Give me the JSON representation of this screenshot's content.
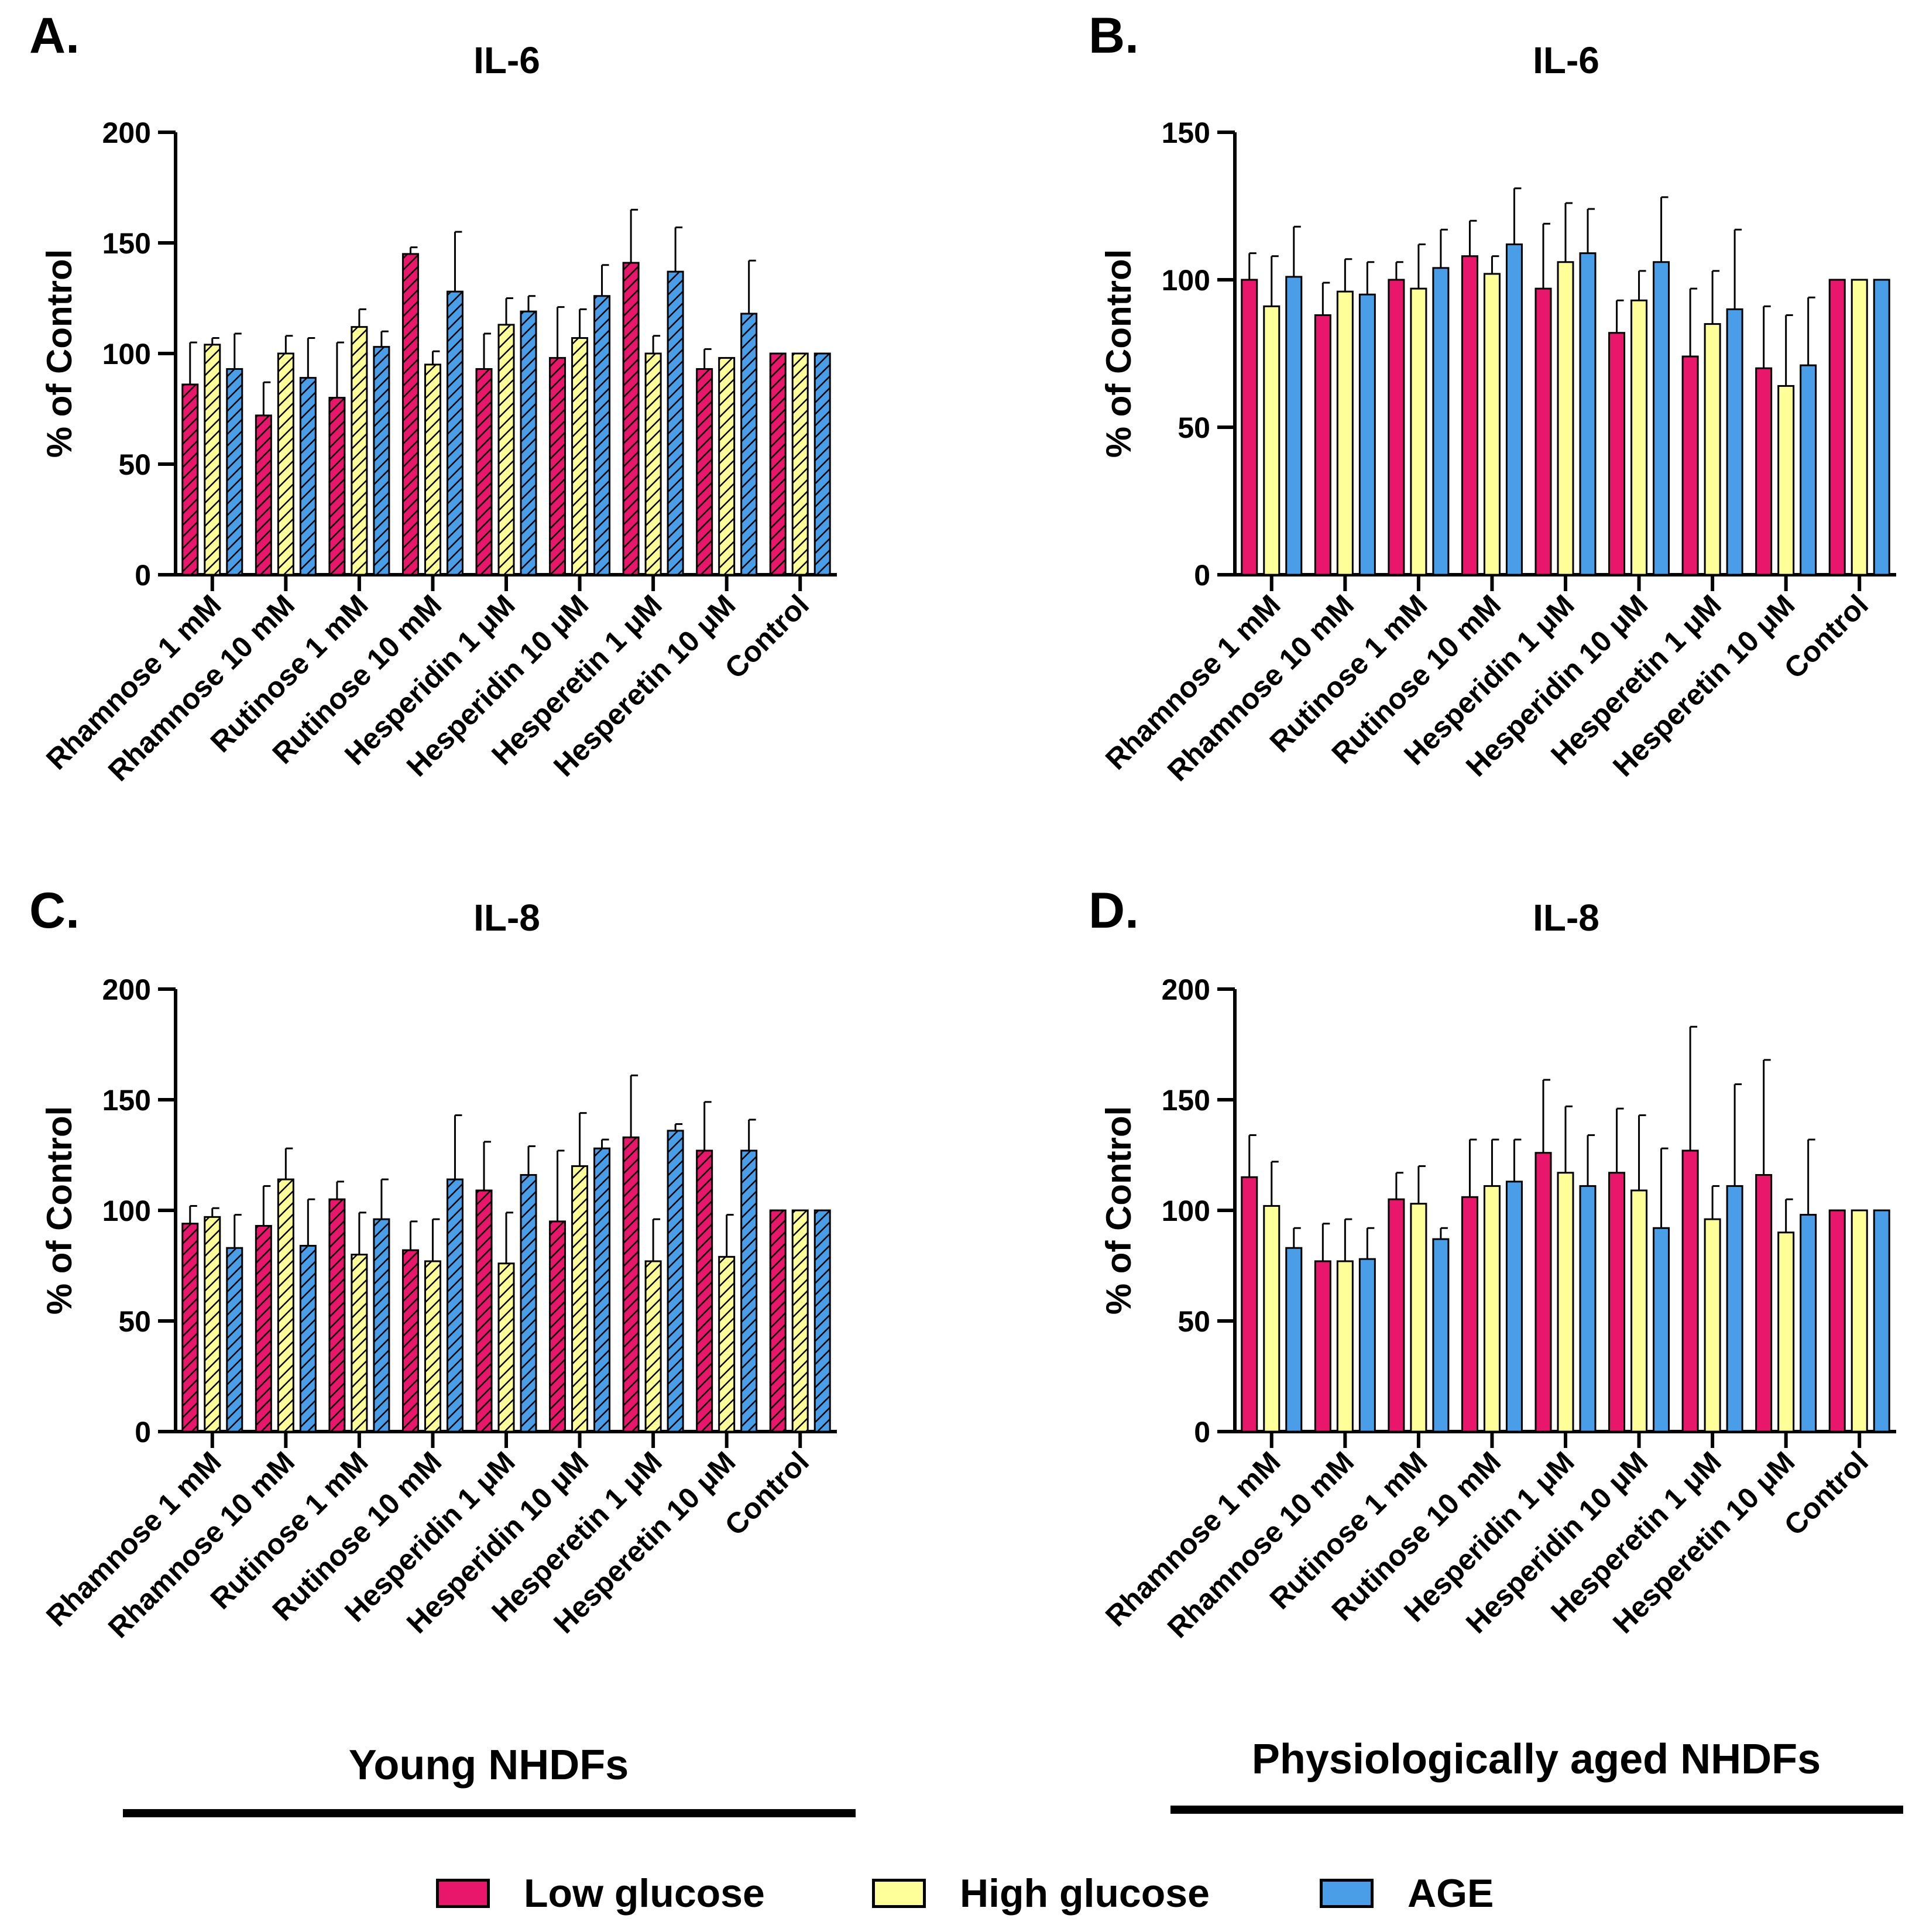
{
  "colors": {
    "low_glucose": "#e8176b",
    "high_glucose": "#ffff99",
    "age": "#4a9ee8"
  },
  "legend": {
    "low": "Low glucose",
    "high": "High glucose",
    "age": "AGE"
  },
  "captions": {
    "young": "Young NHDFs",
    "aged": "Physiologically aged NHDFs"
  },
  "panels": [
    {
      "letter": "A.",
      "title": "IL-6"
    },
    {
      "letter": "B.",
      "title": "IL-6"
    },
    {
      "letter": "C.",
      "title": "IL-8"
    },
    {
      "letter": "D.",
      "title": "IL-8"
    }
  ],
  "chart_data": [
    {
      "type": "bar",
      "panel": "A.",
      "title": "IL-6",
      "ylabel": "% of Control",
      "ylim": [
        0,
        200
      ],
      "yticks": [
        0,
        50,
        100,
        150,
        200
      ],
      "pattern": "hatched",
      "categories": [
        "Rhamnose 1 mM",
        "Rhamnose 10 mM",
        "Rutinose 1 mM",
        "Rutinose 10 mM",
        "Hesperidin 1 μM",
        "Hesperidin 10 μM",
        "Hesperetin 1 μM",
        "Hesperetin 10 μM",
        "Control"
      ],
      "series": [
        {
          "name": "Low glucose",
          "values": [
            86,
            72,
            80,
            145,
            93,
            98,
            141,
            93,
            100
          ],
          "errors": [
            19,
            15,
            25,
            3,
            16,
            23,
            24,
            9,
            0
          ]
        },
        {
          "name": "High glucose",
          "values": [
            104,
            100,
            112,
            95,
            113,
            107,
            100,
            98,
            100
          ],
          "errors": [
            3,
            8,
            8,
            6,
            12,
            13,
            8,
            0,
            0
          ]
        },
        {
          "name": "AGE",
          "values": [
            93,
            89,
            103,
            128,
            119,
            126,
            137,
            118,
            100
          ],
          "errors": [
            16,
            18,
            7,
            27,
            7,
            14,
            20,
            24,
            0
          ]
        }
      ]
    },
    {
      "type": "bar",
      "panel": "B.",
      "title": "IL-6",
      "ylabel": "% of Control",
      "ylim": [
        0,
        150
      ],
      "yticks": [
        0,
        50,
        100,
        150
      ],
      "pattern": "solid",
      "categories": [
        "Rhamnose 1 mM",
        "Rhamnose 10 mM",
        "Rutinose 1 mM",
        "Rutinose 10 mM",
        "Hesperidin 1 μM",
        "Hesperidin 10 μM",
        "Hesperetin 1 μM",
        "Hesperetin 10 μM",
        "Control"
      ],
      "series": [
        {
          "name": "Low glucose",
          "values": [
            100,
            88,
            100,
            108,
            97,
            82,
            74,
            70,
            100
          ],
          "errors": [
            9,
            11,
            6,
            12,
            22,
            11,
            23,
            21,
            0
          ]
        },
        {
          "name": "High glucose",
          "values": [
            91,
            96,
            97,
            102,
            106,
            93,
            85,
            64,
            100
          ],
          "errors": [
            17,
            11,
            15,
            6,
            20,
            10,
            18,
            24,
            0
          ]
        },
        {
          "name": "AGE",
          "values": [
            101,
            95,
            104,
            112,
            109,
            106,
            90,
            71,
            100
          ],
          "errors": [
            17,
            11,
            13,
            19,
            15,
            22,
            27,
            23,
            0
          ]
        }
      ]
    },
    {
      "type": "bar",
      "panel": "C.",
      "title": "IL-8",
      "ylabel": "% of Control",
      "ylim": [
        0,
        200
      ],
      "yticks": [
        0,
        50,
        100,
        150,
        200
      ],
      "pattern": "hatched",
      "categories": [
        "Rhamnose 1 mM",
        "Rhamnose 10 mM",
        "Rutinose 1 mM",
        "Rutinose 10 mM",
        "Hesperidin 1 μM",
        "Hesperidin 10 μM",
        "Hesperetin 1 μM",
        "Hesperetin 10 μM",
        "Control"
      ],
      "series": [
        {
          "name": "Low glucose",
          "values": [
            94,
            93,
            105,
            82,
            109,
            95,
            133,
            127,
            100
          ],
          "errors": [
            8,
            18,
            8,
            13,
            22,
            32,
            28,
            22,
            0
          ]
        },
        {
          "name": "High glucose",
          "values": [
            97,
            114,
            80,
            77,
            76,
            120,
            77,
            79,
            100
          ],
          "errors": [
            4,
            14,
            19,
            19,
            23,
            24,
            19,
            19,
            0
          ]
        },
        {
          "name": "AGE",
          "values": [
            83,
            84,
            96,
            114,
            116,
            128,
            136,
            127,
            100
          ],
          "errors": [
            15,
            21,
            18,
            29,
            13,
            4,
            3,
            14,
            0
          ]
        }
      ]
    },
    {
      "type": "bar",
      "panel": "D.",
      "title": "IL-8",
      "ylabel": "% of Control",
      "ylim": [
        0,
        200
      ],
      "yticks": [
        0,
        50,
        100,
        150,
        200
      ],
      "pattern": "solid",
      "categories": [
        "Rhamnose 1 mM",
        "Rhamnose 10 mM",
        "Rutinose 1 mM",
        "Rutinose 10 mM",
        "Hesperidin 1 μM",
        "Hesperidin 10 μM",
        "Hesperetin 1 μM",
        "Hesperetin 10 μM",
        "Control"
      ],
      "series": [
        {
          "name": "Low glucose",
          "values": [
            115,
            77,
            105,
            106,
            126,
            117,
            127,
            116,
            100
          ],
          "errors": [
            19,
            17,
            12,
            26,
            33,
            29,
            56,
            52,
            0
          ]
        },
        {
          "name": "High glucose",
          "values": [
            102,
            77,
            103,
            111,
            117,
            109,
            96,
            90,
            100
          ],
          "errors": [
            20,
            19,
            17,
            21,
            30,
            34,
            15,
            15,
            0
          ]
        },
        {
          "name": "AGE",
          "values": [
            83,
            78,
            87,
            113,
            111,
            92,
            111,
            98,
            100
          ],
          "errors": [
            9,
            14,
            5,
            19,
            23,
            36,
            46,
            34,
            0
          ]
        }
      ]
    }
  ]
}
